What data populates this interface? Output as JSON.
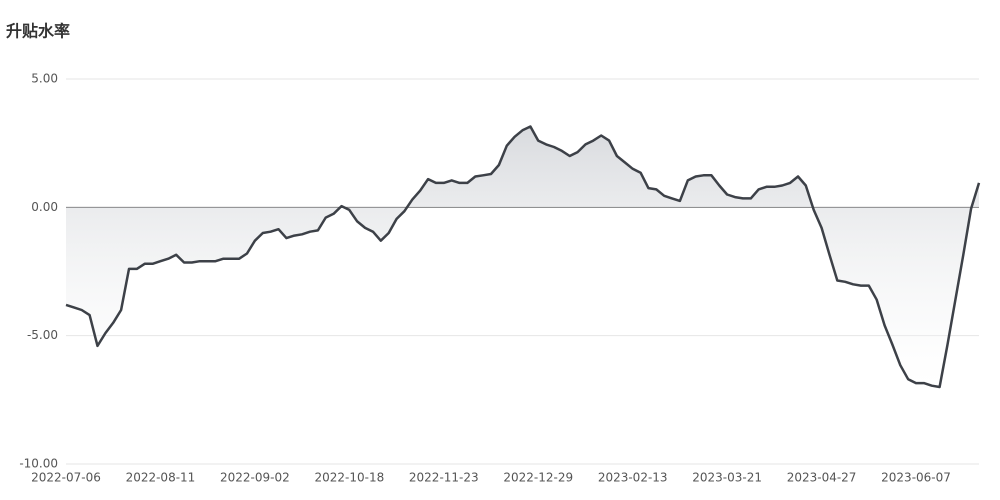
{
  "chart_data": {
    "type": "line",
    "title": "升贴水率",
    "categories": [
      "2022-07-06",
      null,
      null,
      null,
      null,
      null,
      null,
      null,
      null,
      null,
      null,
      null,
      "2022-08-11",
      null,
      null,
      null,
      null,
      null,
      null,
      null,
      null,
      null,
      null,
      null,
      "2022-09-02",
      null,
      null,
      null,
      null,
      null,
      null,
      null,
      null,
      null,
      null,
      null,
      "2022-10-18",
      null,
      null,
      null,
      null,
      null,
      null,
      null,
      null,
      null,
      null,
      null,
      "2022-11-23",
      null,
      null,
      null,
      null,
      null,
      null,
      null,
      null,
      null,
      null,
      null,
      "2022-12-29",
      null,
      null,
      null,
      null,
      null,
      null,
      null,
      null,
      null,
      null,
      null,
      "2023-02-13",
      null,
      null,
      null,
      null,
      null,
      null,
      null,
      null,
      null,
      null,
      null,
      "2023-03-21",
      null,
      null,
      null,
      null,
      null,
      null,
      null,
      null,
      null,
      null,
      null,
      "2023-04-27",
      null,
      null,
      null,
      null,
      null,
      null,
      null,
      null,
      null,
      null,
      null,
      "2023-06-07",
      null,
      null,
      null,
      null,
      null,
      null,
      null,
      null
    ],
    "series": [
      {
        "color": "#3d4148",
        "values": [
          -3.8,
          -3.9,
          -4.0,
          -4.2,
          -5.4,
          -4.9,
          -4.5,
          -4.0,
          -2.4,
          -2.4,
          -2.2,
          -2.2,
          -2.1,
          -2.0,
          -1.85,
          -2.15,
          -2.15,
          -2.1,
          -2.1,
          -2.1,
          -2.0,
          -2.0,
          -2.0,
          -1.8,
          -1.3,
          -1.0,
          -0.95,
          -0.85,
          -1.2,
          -1.1,
          -1.05,
          -0.95,
          -0.9,
          -0.4,
          -0.25,
          0.05,
          -0.1,
          -0.55,
          -0.8,
          -0.95,
          -1.3,
          -1.0,
          -0.45,
          -0.15,
          0.3,
          0.65,
          1.1,
          0.95,
          0.95,
          1.05,
          0.95,
          0.95,
          1.2,
          1.25,
          1.3,
          1.65,
          2.4,
          2.75,
          3.0,
          3.15,
          2.6,
          2.45,
          2.35,
          2.2,
          2.0,
          2.15,
          2.45,
          2.6,
          2.8,
          2.6,
          2.0,
          1.75,
          1.5,
          1.35,
          0.75,
          0.7,
          0.45,
          0.35,
          0.25,
          1.05,
          1.2,
          1.25,
          1.25,
          0.85,
          0.5,
          0.4,
          0.35,
          0.35,
          0.7,
          0.8,
          0.8,
          0.85,
          0.95,
          1.2,
          0.85,
          -0.1,
          -0.8,
          -1.85,
          -2.85,
          -2.9,
          -3.0,
          -3.05,
          -3.05,
          -3.6,
          -4.6,
          -5.35,
          -6.15,
          -6.7,
          -6.85,
          -6.85,
          -6.95,
          -7.0,
          -5.35,
          -3.6,
          -1.85,
          -0.05,
          0.95
        ]
      }
    ],
    "ylim": [
      -10,
      5
    ],
    "yticks": [
      {
        "value": -10,
        "label": "-10.00"
      },
      {
        "value": -5,
        "label": "-5.00"
      },
      {
        "value": 0,
        "label": "0.00"
      },
      {
        "value": 5,
        "label": "5.00"
      }
    ],
    "grid": true
  }
}
